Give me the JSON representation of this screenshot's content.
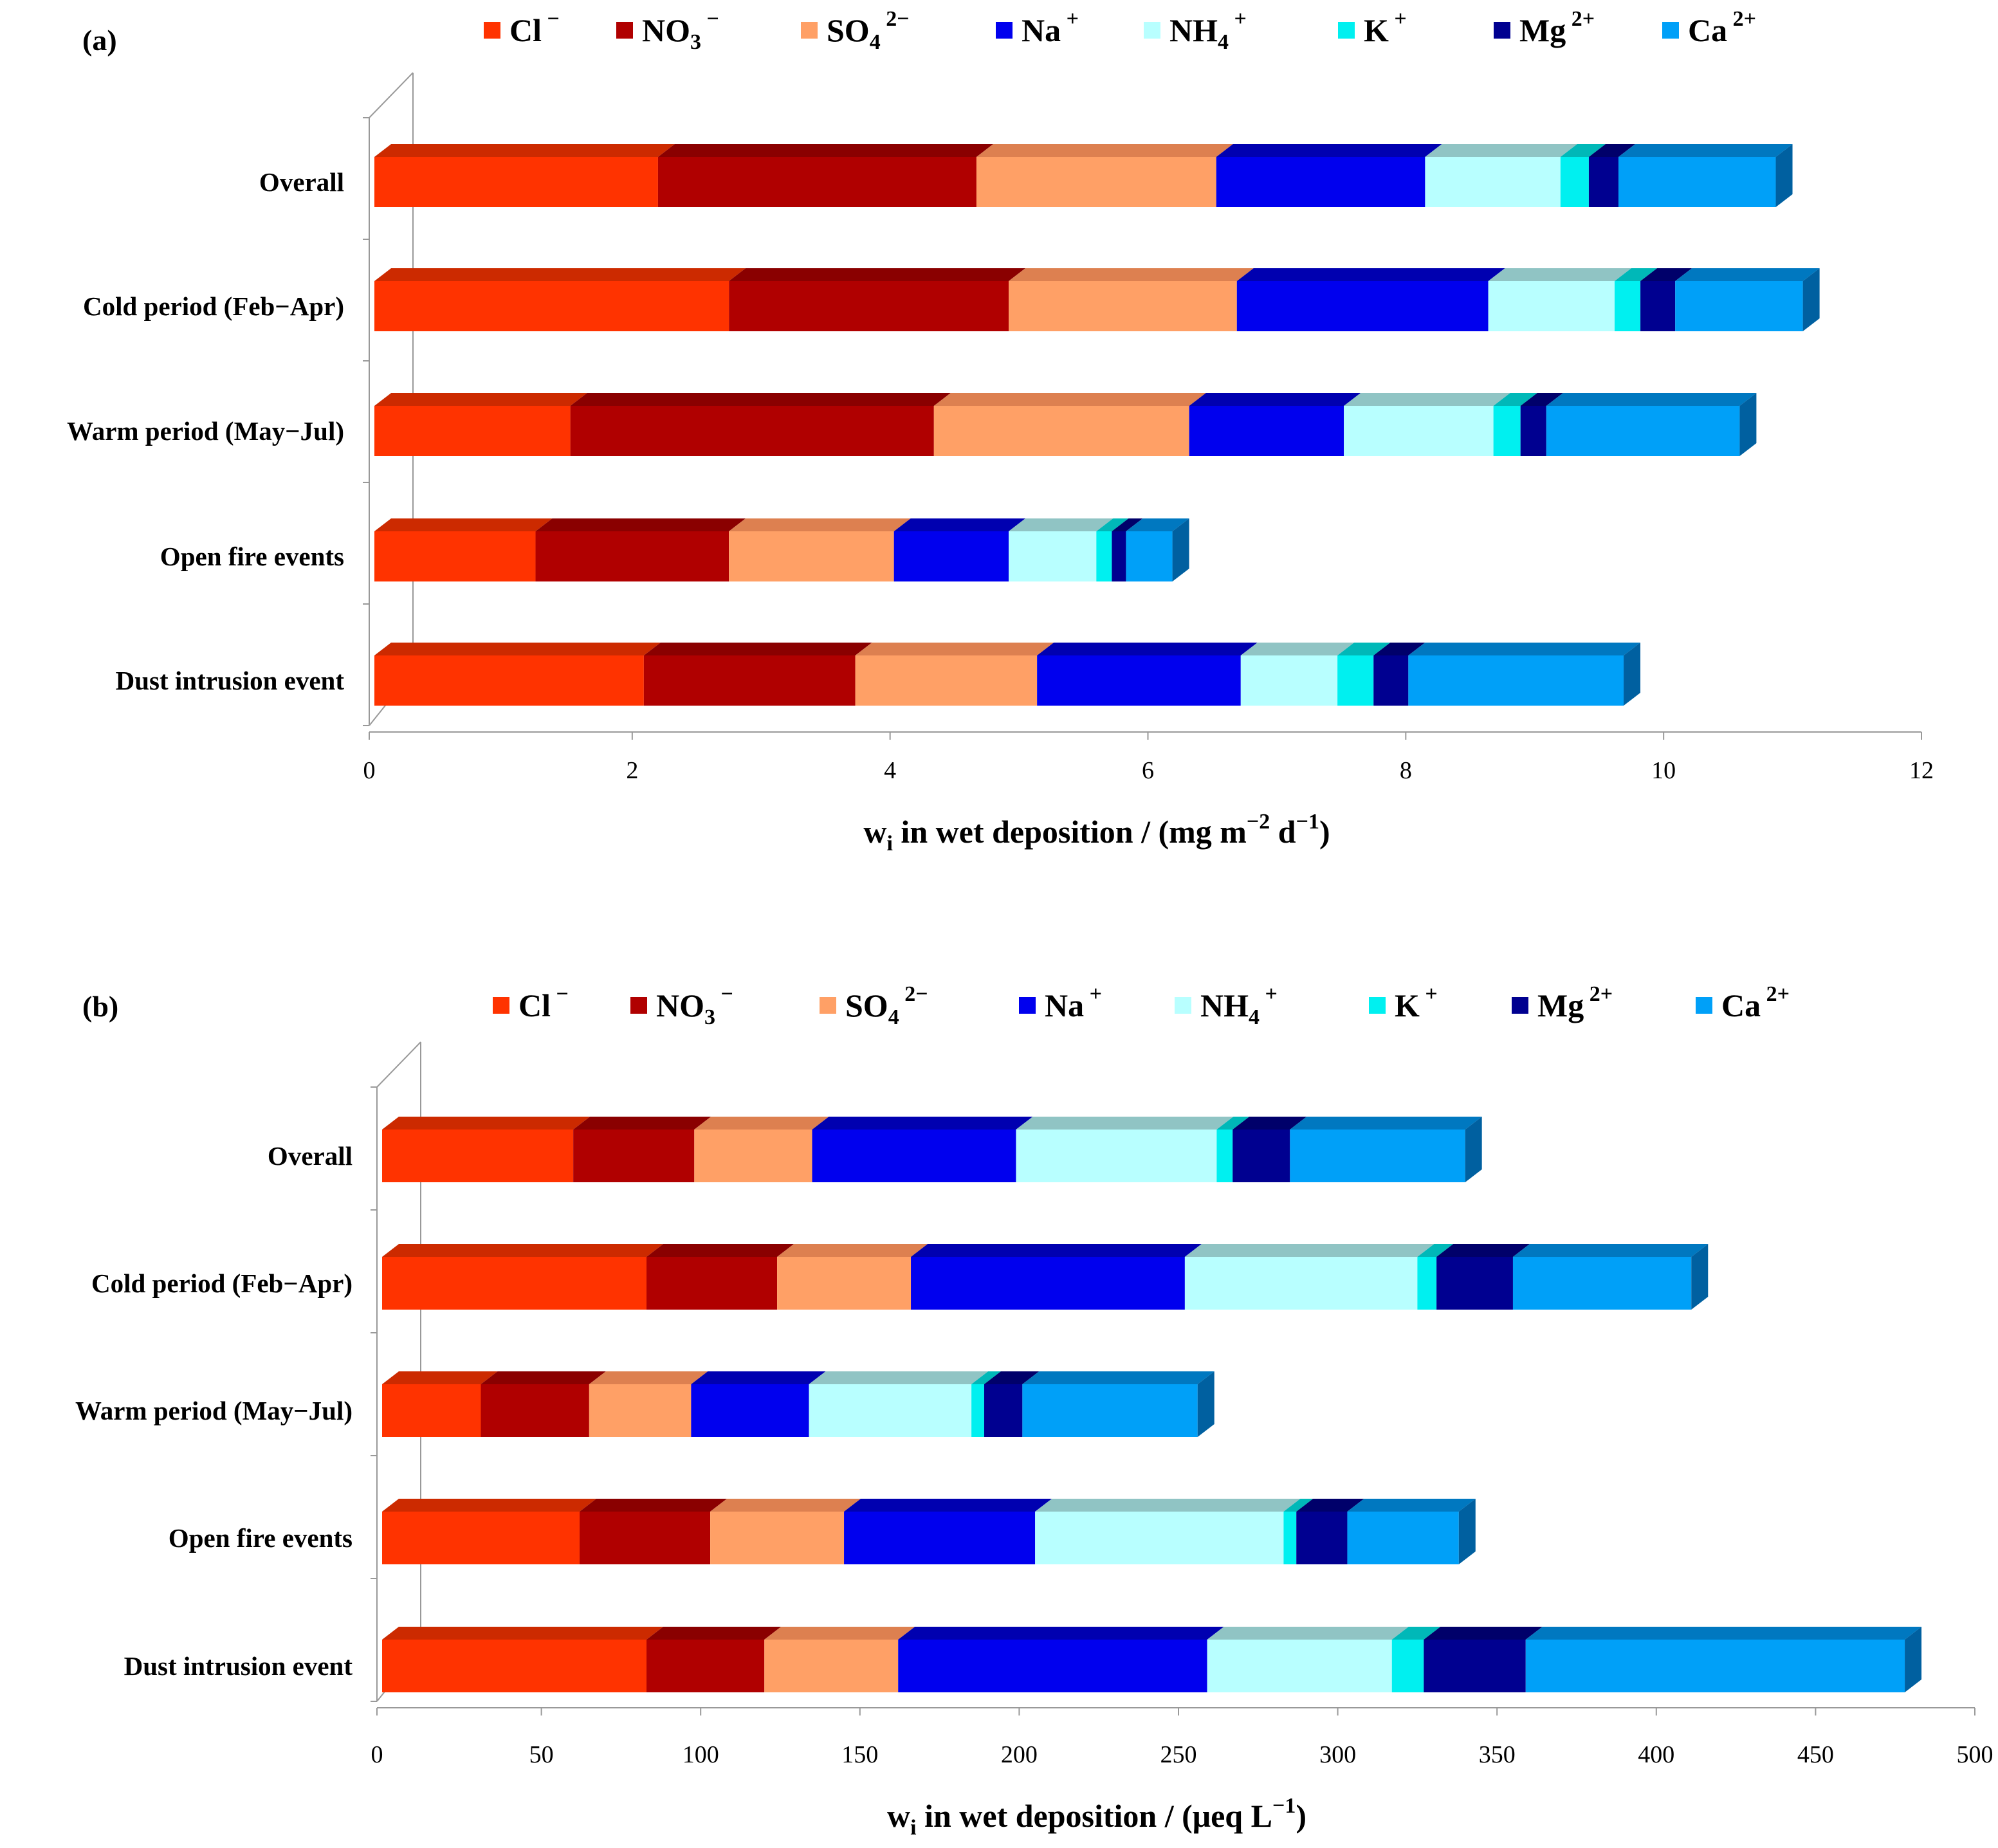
{
  "series_styles": [
    {
      "key": "Cl",
      "base": "Cl",
      "sub": "",
      "sup": "−",
      "front": "#ff3300",
      "top": "#cc2a00",
      "side": "#a02000"
    },
    {
      "key": "NO3",
      "base": "NO",
      "sub": "3",
      "sup": "−",
      "front": "#b00000",
      "top": "#8a0000",
      "side": "#6a0000"
    },
    {
      "key": "SO4",
      "base": "SO",
      "sub": "4",
      "sup": "2−",
      "front": "#ffa066",
      "top": "#dd8050",
      "side": "#c06a3a"
    },
    {
      "key": "Na",
      "base": "Na",
      "sub": "",
      "sup": "+",
      "front": "#0000ee",
      "top": "#0000b0",
      "side": "#000090"
    },
    {
      "key": "NH4",
      "base": "NH",
      "sub": "4",
      "sup": "+",
      "front": "#b8ffff",
      "top": "#90c4c4",
      "side": "#7aa8a8"
    },
    {
      "key": "K",
      "base": "K",
      "sub": "",
      "sup": "+",
      "front": "#00f0f0",
      "top": "#00b8b8",
      "side": "#009a9a"
    },
    {
      "key": "Mg",
      "base": "Mg",
      "sub": "",
      "sup": "2+",
      "front": "#000090",
      "top": "#00006a",
      "side": "#000050"
    },
    {
      "key": "Ca",
      "base": "Ca",
      "sub": "",
      "sup": "2+",
      "front": "#00a0f8",
      "top": "#0078c0",
      "side": "#0060a0"
    }
  ],
  "chart_data": [
    {
      "type": "bar",
      "orientation": "horizontal",
      "stacked": true,
      "panel_label": "(a)",
      "xlabel_pre": "w",
      "xlabel_sub": "i",
      "xlabel_post": " in wet deposition / (mg m",
      "xlabel_sup1": "−2",
      "xlabel_mid": " d",
      "xlabel_sup2": "−1",
      "xlabel_end": ")",
      "xlim": [
        0,
        12
      ],
      "xticks": [
        "0",
        "2",
        "4",
        "6",
        "8",
        "10",
        "12"
      ],
      "categories": [
        "Overall",
        "Cold period (Feb−Apr)",
        "Warm period (May−Jul)",
        "Open fire events",
        "Dust intrusion event"
      ],
      "series": [
        {
          "name": "Cl−",
          "values": [
            2.2,
            2.75,
            1.52,
            1.25,
            2.09
          ]
        },
        {
          "name": "NO3−",
          "values": [
            2.47,
            2.17,
            2.82,
            1.5,
            1.64
          ]
        },
        {
          "name": "SO42−",
          "values": [
            1.86,
            1.77,
            1.98,
            1.28,
            1.41
          ]
        },
        {
          "name": "Na+",
          "values": [
            1.62,
            1.95,
            1.2,
            0.89,
            1.58
          ]
        },
        {
          "name": "NH4+",
          "values": [
            1.05,
            0.98,
            1.16,
            0.68,
            0.75
          ]
        },
        {
          "name": "K+",
          "values": [
            0.22,
            0.2,
            0.21,
            0.12,
            0.28
          ]
        },
        {
          "name": "Mg2+",
          "values": [
            0.23,
            0.27,
            0.2,
            0.11,
            0.27
          ]
        },
        {
          "name": "Ca2+",
          "values": [
            1.22,
            0.99,
            1.5,
            0.36,
            1.67
          ]
        }
      ]
    },
    {
      "type": "bar",
      "orientation": "horizontal",
      "stacked": true,
      "panel_label": "(b)",
      "xlabel_pre": "w",
      "xlabel_sub": "i",
      "xlabel_post": " in wet deposition / (μeq L",
      "xlabel_sup1": "−1",
      "xlabel_mid": "",
      "xlabel_sup2": "",
      "xlabel_end": ")",
      "xlim": [
        0,
        500
      ],
      "xticks": [
        "0",
        "50",
        "100",
        "150",
        "200",
        "250",
        "300",
        "350",
        "400",
        "450",
        "500"
      ],
      "categories": [
        "Overall",
        "Cold period (Feb−Apr)",
        "Warm period (May−Jul)",
        "Open fire events",
        "Dust intrusion event"
      ],
      "series": [
        {
          "name": "Cl−",
          "values": [
            60,
            83,
            31,
            62,
            83
          ]
        },
        {
          "name": "NO3−",
          "values": [
            38,
            41,
            34,
            41,
            37
          ]
        },
        {
          "name": "SO42−",
          "values": [
            37,
            42,
            32,
            42,
            42
          ]
        },
        {
          "name": "Na+",
          "values": [
            64,
            86,
            37,
            60,
            97
          ]
        },
        {
          "name": "NH4+",
          "values": [
            63,
            73,
            51,
            78,
            58
          ]
        },
        {
          "name": "K+",
          "values": [
            5,
            6,
            4,
            4,
            10
          ]
        },
        {
          "name": "Mg2+",
          "values": [
            18,
            24,
            12,
            16,
            32
          ]
        },
        {
          "name": "Ca2+",
          "values": [
            55,
            56,
            55,
            35,
            119
          ]
        }
      ]
    }
  ]
}
